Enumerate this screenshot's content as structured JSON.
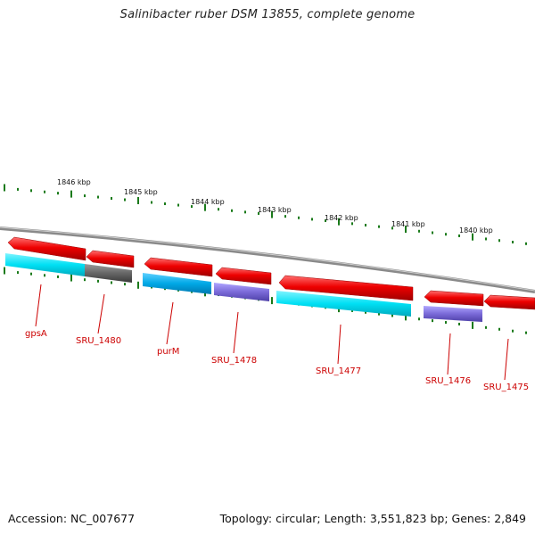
{
  "title": "Salinibacter ruber DSM 13855, complete genome",
  "accession": "Accession: NC_007677",
  "summary": "Topology: circular; Length: 3,551,823 bp; Genes: 2,849",
  "colors": {
    "forward_gene": "#ee0000",
    "cds_cyan": "#00d8f0",
    "cds_blue": "#00a8e0",
    "cds_purple": "#7a6ad8",
    "cds_gray": "#666666",
    "backbone": "#8a8a8a",
    "ticks": "#1a7a1a",
    "labels": "#cc0000"
  },
  "scale_labels": [
    "1846 kbp",
    "1845 kbp",
    "1844 kbp",
    "1843 kbp",
    "1842 kbp",
    "1841 kbp",
    "1840 kbp"
  ],
  "gene_labels": [
    "gpsA",
    "SRU_1480",
    "purM",
    "SRU_1478",
    "SRU_1477",
    "SRU_1476",
    "SRU_1475"
  ]
}
